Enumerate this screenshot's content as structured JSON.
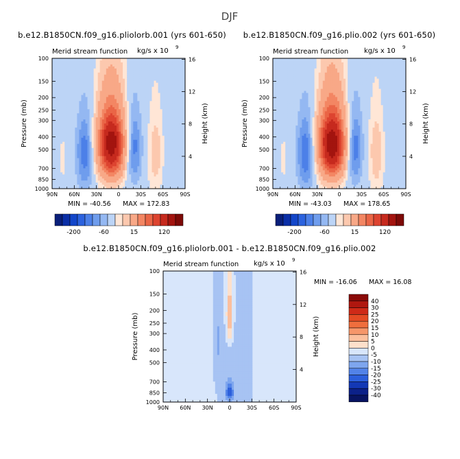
{
  "title": "DJF",
  "chart_data": [
    {
      "type": "heatmap",
      "run_title": "b.e12.B1850CN.f09_g16.pliolorb.001 (yrs 601-650)",
      "var_title": "Merid stream function",
      "units": "kg/s x 10",
      "units_exp": "9",
      "x_ticks": [
        "90N",
        "60N",
        "30N",
        "0",
        "30S",
        "60S",
        "90S"
      ],
      "y_ticks": [
        "100",
        "150",
        "200",
        "250",
        "300",
        "400",
        "500",
        "700",
        "850",
        "1000"
      ],
      "y_tick_values": [
        100,
        150,
        200,
        250,
        300,
        400,
        500,
        700,
        850,
        1000
      ],
      "right_ticks": [
        "16",
        "12",
        "8",
        "4"
      ],
      "right_tick_values": [
        16,
        12,
        8,
        4
      ],
      "ylabel": "Pressure (mb)",
      "right_label": "Height (km)",
      "min_label": "MIN = -40.56",
      "max_label": "MAX = 172.83",
      "fields": [
        {
          "lat": 10,
          "p": 420,
          "amp": 172.83,
          "slat": 13,
          "sp": 260
        },
        {
          "lat": -20,
          "p": 460,
          "amp": -40.56,
          "slat": 8,
          "sp": 300
        },
        {
          "lat": 45,
          "p": 520,
          "amp": -38,
          "slat": 9,
          "sp": 330
        },
        {
          "lat": -50,
          "p": 520,
          "amp": 22,
          "slat": 7,
          "sp": 330
        },
        {
          "lat": 75,
          "p": 600,
          "amp": 6,
          "slat": 7,
          "sp": 300
        },
        {
          "lat": -72,
          "p": 500,
          "amp": -6,
          "slat": 7,
          "sp": 350
        }
      ]
    },
    {
      "type": "heatmap",
      "run_title": "b.e12.B1850CN.f09_g16.plio.002 (yrs 601-650)",
      "var_title": "Merid stream function",
      "units": "kg/s x 10",
      "units_exp": "9",
      "x_ticks": [
        "90N",
        "60N",
        "30N",
        "0",
        "30S",
        "60S",
        "90S"
      ],
      "y_ticks": [
        "100",
        "150",
        "200",
        "250",
        "300",
        "400",
        "500",
        "700",
        "850",
        "1000"
      ],
      "y_tick_values": [
        100,
        150,
        200,
        250,
        300,
        400,
        500,
        700,
        850,
        1000
      ],
      "right_ticks": [
        "16",
        "12",
        "8",
        "4"
      ],
      "right_tick_values": [
        16,
        12,
        8,
        4
      ],
      "ylabel": "Pressure (mb)",
      "right_label": "Height (km)",
      "min_label": "MIN = -43.03",
      "max_label": "MAX = 178.65",
      "fields": [
        {
          "lat": 10,
          "p": 420,
          "amp": 178.65,
          "slat": 13,
          "sp": 260
        },
        {
          "lat": -20,
          "p": 460,
          "amp": -43.03,
          "slat": 8,
          "sp": 300
        },
        {
          "lat": 45,
          "p": 520,
          "amp": -40,
          "slat": 9,
          "sp": 330
        },
        {
          "lat": -50,
          "p": 520,
          "amp": 24,
          "slat": 7,
          "sp": 330
        },
        {
          "lat": 75,
          "p": 600,
          "amp": 6,
          "slat": 7,
          "sp": 300
        },
        {
          "lat": -72,
          "p": 500,
          "amp": -6,
          "slat": 7,
          "sp": 350
        }
      ]
    },
    {
      "type": "heatmap",
      "run_title": "b.e12.B1850CN.f09_g16.pliolorb.001 - b.e12.B1850CN.f09_g16.plio.002",
      "var_title": "Merid stream function",
      "units": "kg/s x 10",
      "units_exp": "9",
      "x_ticks": [
        "90N",
        "60N",
        "30N",
        "0",
        "30S",
        "60S",
        "90S"
      ],
      "y_ticks": [
        "100",
        "150",
        "200",
        "250",
        "300",
        "400",
        "500",
        "700",
        "850",
        "1000"
      ],
      "y_tick_values": [
        100,
        150,
        200,
        250,
        300,
        400,
        500,
        700,
        850,
        1000
      ],
      "right_ticks": [
        "16",
        "12",
        "8",
        "4"
      ],
      "right_tick_values": [
        16,
        12,
        8,
        4
      ],
      "ylabel": "Pressure (mb)",
      "right_label": "Height (km)",
      "min_label": "MIN = -16.06",
      "max_label": "MAX =  16.08",
      "fields": [
        {
          "lat": 0,
          "p": 220,
          "amp": 16.08,
          "slat": 3,
          "sp": 90
        },
        {
          "lat": 0,
          "p": 850,
          "amp": -16.06,
          "slat": 4,
          "sp": 90
        },
        {
          "lat": 15,
          "p": 350,
          "amp": -6,
          "slat": 3,
          "sp": 150
        },
        {
          "lat": 0,
          "p": 600,
          "amp": -4,
          "slat": 6,
          "sp": 250
        },
        {
          "lat": 40,
          "p": 700,
          "amp": 4,
          "slat": 3,
          "sp": 200
        },
        {
          "lat": -20,
          "p": 500,
          "amp": -3,
          "slat": 6,
          "sp": 400
        },
        {
          "lat": 60,
          "p": 500,
          "amp": 2,
          "slat": 15,
          "sp": 500
        },
        {
          "lat": -60,
          "p": 500,
          "amp": 2,
          "slat": 15,
          "sp": 500
        }
      ]
    }
  ],
  "colorbar_top": {
    "labels": [
      "-200",
      "-60",
      "15",
      "120"
    ],
    "colors": [
      "#0a1f7a",
      "#0b2fa7",
      "#1346c9",
      "#2c62de",
      "#4c80e8",
      "#6f9ded",
      "#94b8f2",
      "#bcd4f6",
      "#ffe6d6",
      "#fcc8ae",
      "#f8a887",
      "#f38663",
      "#ea6546",
      "#dd4430",
      "#c62a1e",
      "#a3140f",
      "#7d0a07"
    ]
  },
  "colorbar_diff": {
    "labels": [
      "40",
      "30",
      "25",
      "20",
      "15",
      "10",
      "5",
      "0",
      "-5",
      "-10",
      "-15",
      "-20",
      "-25",
      "-30",
      "-40"
    ],
    "colors": [
      "#8a0b09",
      "#b0170f",
      "#cf2a18",
      "#e44b24",
      "#ef6e3d",
      "#f6966a",
      "#fbbf9d",
      "#fee0cb",
      "#d8e6fb",
      "#a7c3f3",
      "#7ea6ee",
      "#5283e8",
      "#2c5fdb",
      "#1338b5",
      "#0c2189",
      "#081462"
    ]
  }
}
